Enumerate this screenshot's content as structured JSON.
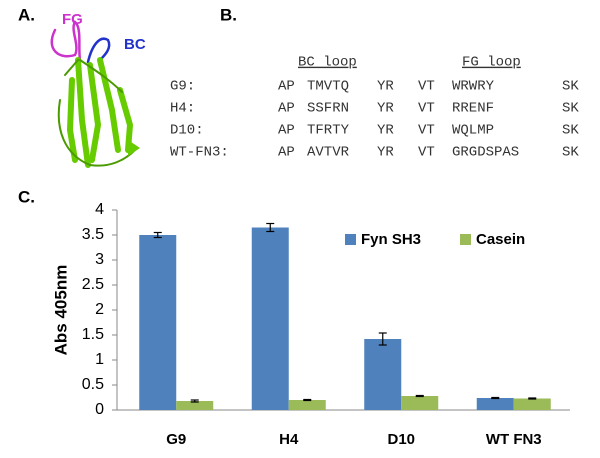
{
  "panels": {
    "a": "A.",
    "b": "B.",
    "c": "C."
  },
  "structure_labels": {
    "fg": "FG",
    "bc": "BC"
  },
  "sequences": {
    "headers": {
      "bc": "BC loop",
      "fg": "FG loop"
    },
    "rows": [
      [
        "G9:",
        "AP",
        "TMVTQ",
        "YR",
        "VT",
        "WRWRY",
        "SK"
      ],
      [
        "H4:",
        "AP",
        "SSFRN",
        "YR",
        "VT",
        "RRENF",
        "SK"
      ],
      [
        "D10:",
        "AP",
        "TFRTY",
        "YR",
        "VT",
        "WQLMP",
        "SK"
      ],
      [
        "WT-FN3:",
        "AP",
        "AVTVR",
        "YR",
        "VT",
        "GRGDSPAS",
        "SK"
      ]
    ]
  },
  "chart_data": {
    "type": "bar",
    "y_label": "Abs 405nm",
    "categories": [
      "G9",
      "H4",
      "D10",
      "WT FN3"
    ],
    "series": [
      {
        "name": "Fyn SH3",
        "color": "#4f81bd",
        "values": [
          3.5,
          3.65,
          1.42,
          0.24
        ],
        "errors": [
          0.05,
          0.08,
          0.12,
          0.01
        ]
      },
      {
        "name": "Casein",
        "color": "#9bbb59",
        "values": [
          0.18,
          0.2,
          0.28,
          0.23
        ],
        "errors": [
          0.02,
          0.01,
          0.01,
          0.01
        ]
      }
    ],
    "ylim": [
      0,
      4
    ],
    "yticks": [
      0,
      0.5,
      1,
      1.5,
      2,
      2.5,
      3,
      3.5,
      4
    ],
    "grid": false,
    "legend": "top-right"
  }
}
